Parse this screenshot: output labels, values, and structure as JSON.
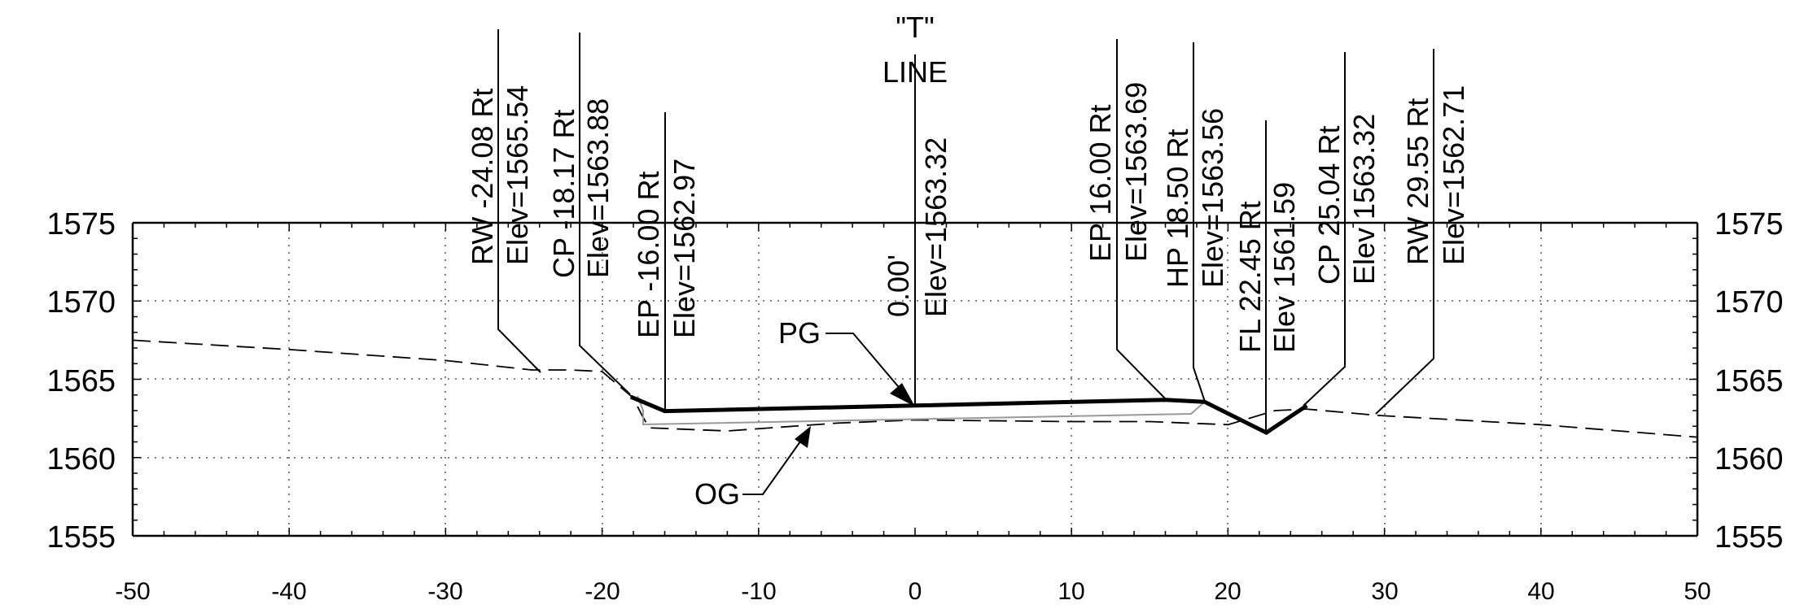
{
  "drawing": {
    "x_ticks": [
      "-50",
      "-40",
      "-30",
      "-20",
      "-10",
      "0",
      "10",
      "20",
      "30",
      "40",
      "50"
    ],
    "y_ticks": [
      "1575",
      "1570",
      "1565",
      "1560",
      "1555"
    ],
    "x_range": [
      -50,
      50
    ],
    "y_range": [
      1555,
      1575
    ],
    "centerline_title": [
      "\"T\"",
      "LINE"
    ],
    "centerline_station": "0.00'",
    "centerline_elev": "Elev=1563.32",
    "points": [
      {
        "lines": [
          "RW  -24.08 Rt",
          "Elev=1565.54"
        ]
      },
      {
        "lines": [
          "CP  -18.17 Rt",
          "Elev=1563.88"
        ]
      },
      {
        "lines": [
          "EP  -16.00 Rt",
          "Elev=1562.97"
        ]
      },
      {
        "lines": [
          "EP  16.00 Rt",
          "Elev=1563.69"
        ]
      },
      {
        "lines": [
          "HP  18.50 Rt",
          "Elev=1563.56"
        ]
      },
      {
        "lines": [
          "FL  22.45 Rt",
          "Elev  1561.59"
        ]
      },
      {
        "lines": [
          "CP  25.04 Rt",
          "Elev  1563.32"
        ]
      },
      {
        "lines": [
          "RW  29.55 Rt",
          "Elev=1562.71"
        ]
      }
    ],
    "pg_label": "PG",
    "og_label": "OG",
    "profile_grade": [
      {
        "x": -18.17,
        "y": 1563.88
      },
      {
        "x": -16.0,
        "y": 1562.97
      },
      {
        "x": 0.0,
        "y": 1563.32
      },
      {
        "x": 16.0,
        "y": 1563.69
      },
      {
        "x": 18.5,
        "y": 1563.56
      },
      {
        "x": 22.45,
        "y": 1561.59
      },
      {
        "x": 25.04,
        "y": 1563.32
      }
    ],
    "original_ground": [
      {
        "x": -50,
        "y": 1567.5
      },
      {
        "x": -40,
        "y": 1566.9
      },
      {
        "x": -30,
        "y": 1566.2
      },
      {
        "x": -24.5,
        "y": 1565.6
      },
      {
        "x": -22,
        "y": 1565.6
      },
      {
        "x": -20,
        "y": 1565.5
      },
      {
        "x": -18,
        "y": 1563.8
      },
      {
        "x": -17.5,
        "y": 1562.8
      },
      {
        "x": -17,
        "y": 1561.9
      },
      {
        "x": -12,
        "y": 1561.7
      },
      {
        "x": -5,
        "y": 1562.2
      },
      {
        "x": 0,
        "y": 1562.4
      },
      {
        "x": 10,
        "y": 1562.3
      },
      {
        "x": 15,
        "y": 1562.3
      },
      {
        "x": 20,
        "y": 1562.1
      },
      {
        "x": 23,
        "y": 1563.0
      },
      {
        "x": 25,
        "y": 1563.1
      },
      {
        "x": 29.5,
        "y": 1562.7
      },
      {
        "x": 40,
        "y": 1562.1
      },
      {
        "x": 50,
        "y": 1561.3
      }
    ]
  }
}
